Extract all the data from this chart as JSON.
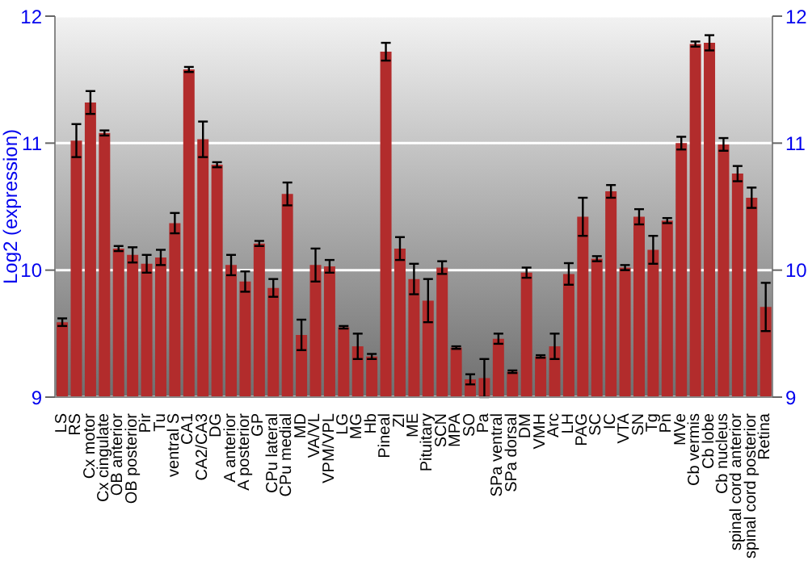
{
  "chart_data": {
    "type": "bar",
    "ylabel": "Log2 (expression)",
    "categories": [
      "LS",
      "RS",
      "Cx motor",
      "Cx cingulate",
      "OB anterior",
      "OB posterior",
      "Pir",
      "Tu",
      "ventral S",
      "CA1",
      "CA2/CA3",
      "DG",
      "A anterior",
      "A posterior",
      "GP",
      "CPu lateral",
      "CPu medial",
      "MD",
      "VA/VL",
      "VPM/VPL",
      "LG",
      "MG",
      "Hb",
      "Pineal",
      "ZI",
      "ME",
      "Pituitary",
      "SCN",
      "MPA",
      "SO",
      "Pa",
      "SPa ventral",
      "SPa dorsal",
      "DM",
      "VMH",
      "Arc",
      "LH",
      "PAG",
      "SC",
      "IC",
      "VTA",
      "SN",
      "Tg",
      "Pn",
      "MVe",
      "Cb vermis",
      "Cb lobe",
      "Cb nucleus",
      "spinal cord anterior",
      "spinal cord posterior",
      "Retina"
    ],
    "series": [
      {
        "color": "#b22c2c",
        "values": [
          9.59,
          11.02,
          11.32,
          11.08,
          10.17,
          10.12,
          10.05,
          10.1,
          10.37,
          11.58,
          11.03,
          10.83,
          10.04,
          9.91,
          10.21,
          9.86,
          10.6,
          9.49,
          10.04,
          10.03,
          9.55,
          9.4,
          9.32,
          11.72,
          10.17,
          9.93,
          9.76,
          10.02,
          9.39,
          9.14,
          9.15,
          9.46,
          9.2,
          9.98,
          9.32,
          9.4,
          9.97,
          10.42,
          10.09,
          10.62,
          10.02,
          10.42,
          10.16,
          10.39,
          11.0,
          11.78,
          11.79,
          10.99,
          10.76,
          10.57,
          9.71
        ],
        "errors": [
          0.03,
          0.13,
          0.09,
          0.02,
          0.02,
          0.06,
          0.07,
          0.06,
          0.08,
          0.02,
          0.14,
          0.02,
          0.08,
          0.08,
          0.02,
          0.07,
          0.09,
          0.12,
          0.13,
          0.05,
          0.01,
          0.1,
          0.02,
          0.07,
          0.09,
          0.12,
          0.17,
          0.05,
          0.01,
          0.04,
          0.15,
          0.04,
          0.01,
          0.04,
          0.01,
          0.1,
          0.085,
          0.15,
          0.02,
          0.05,
          0.02,
          0.06,
          0.11,
          0.02,
          0.05,
          0.02,
          0.06,
          0.05,
          0.06,
          0.08,
          0.19
        ]
      }
    ],
    "ylim": [
      9,
      12
    ],
    "yticks": [
      9,
      10,
      11,
      12
    ],
    "y2lim": [
      9,
      12
    ],
    "y2ticks": [
      9,
      10,
      11,
      12
    ],
    "grid": "y"
  }
}
